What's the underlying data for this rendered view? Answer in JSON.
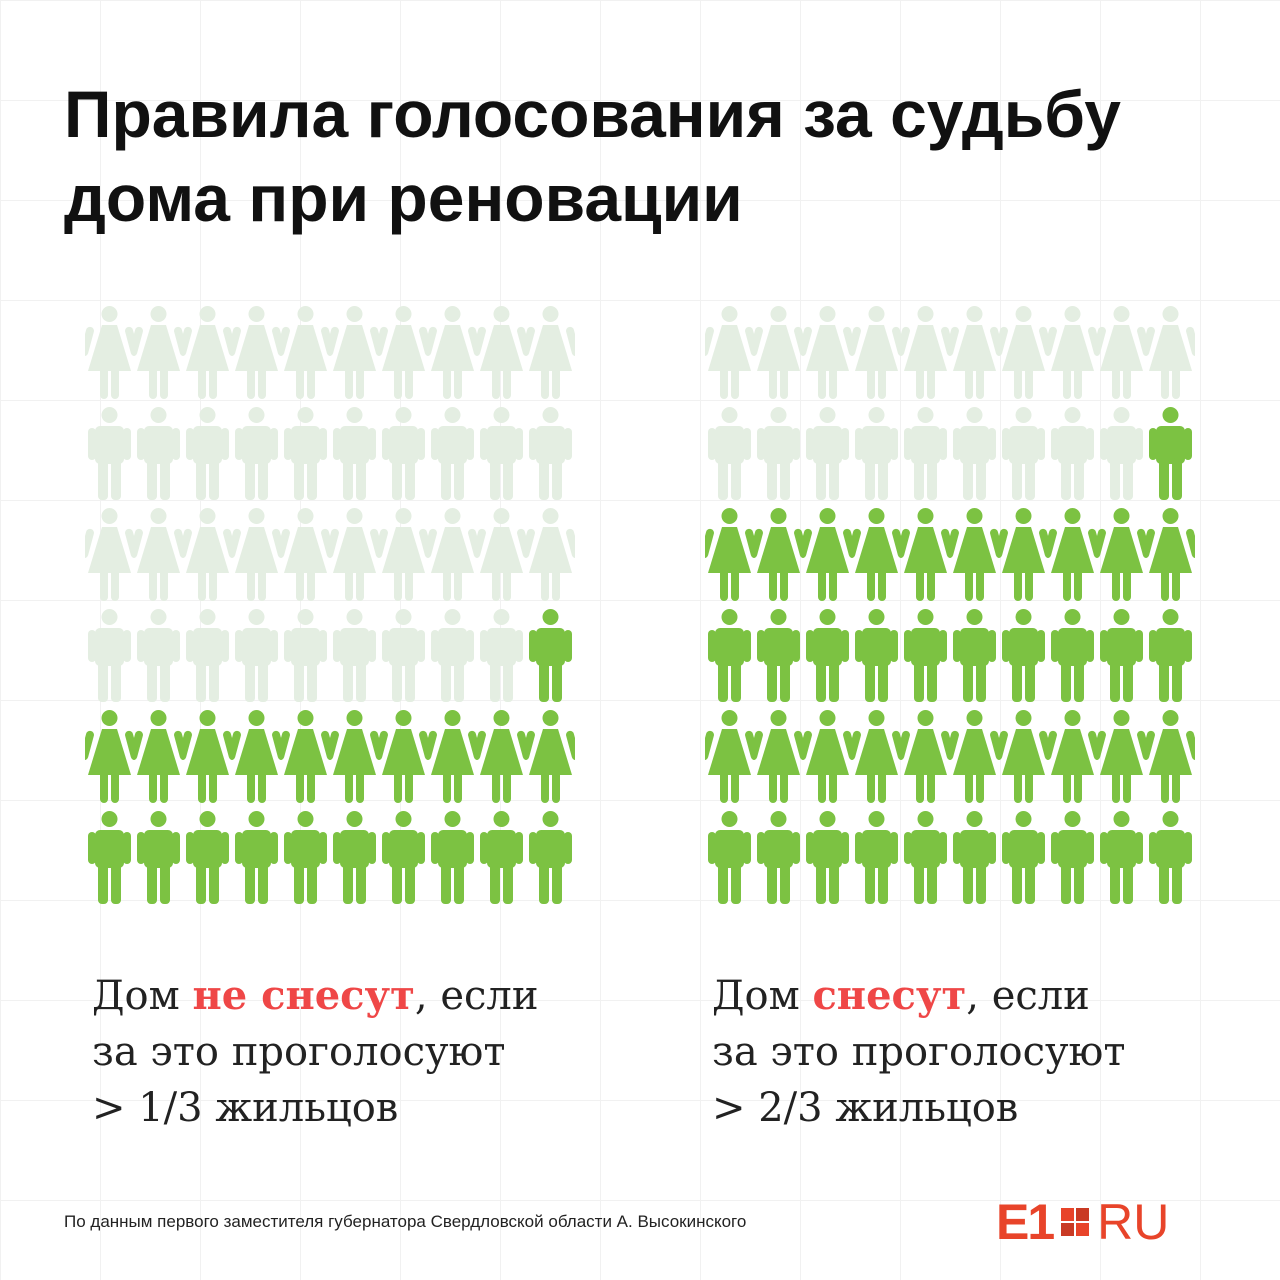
{
  "title": {
    "line1": "Правила голосования за судьбу",
    "line2": "дома при реновации"
  },
  "colors": {
    "voted": "#7cc242",
    "not_voted": "#e4eee2",
    "highlight": "#ef4747",
    "brand": "#e8442a"
  },
  "left_panel": {
    "rows": 6,
    "cols": 10,
    "total": 60,
    "voted": 21,
    "caption": {
      "prefix": "Дом ",
      "highlight": "не снесут",
      "suffix": ", если",
      "line2": "за это проголосуют",
      "line3": "> 1/3 жильцов"
    }
  },
  "right_panel": {
    "rows": 6,
    "cols": 10,
    "total": 60,
    "voted": 41,
    "caption": {
      "prefix": "Дом ",
      "highlight": "снесут",
      "suffix": ", если",
      "line2": "за это проголосуют",
      "line3": "> 2/3 жильцов"
    }
  },
  "footer": {
    "source": "По данным первого заместителя губернатора Свердловской области А. Высокинского"
  },
  "logo": {
    "e1": "E1",
    "ru": "RU"
  }
}
